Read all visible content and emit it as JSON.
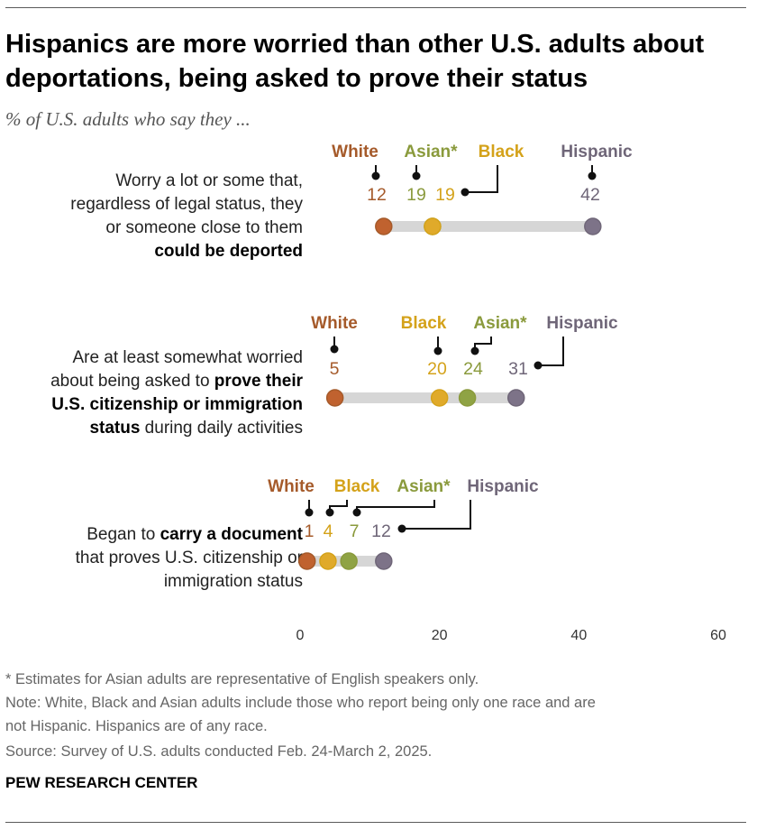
{
  "title": "Hispanics are more worried than other U.S. adults about deportations, being asked to prove their status",
  "subtitle": "% of U.S. adults who say they ...",
  "rows": [
    {
      "label_parts": [
        {
          "text": "Worry a lot or some that,",
          "bold": false
        },
        {
          "text": "regardless of legal status, they",
          "bold": false
        },
        {
          "text": "or someone close to them",
          "bold": false
        },
        {
          "text": "could be deported",
          "bold": true
        }
      ]
    },
    {
      "label_parts": [
        {
          "text": "Are at least somewhat worried",
          "bold": false
        },
        {
          "text": "about being asked to ",
          "bold": false
        },
        {
          "text": "prove their",
          "bold": true
        },
        {
          "text": "U.S. citizenship or immigration",
          "bold": true
        },
        {
          "text": "status",
          "bold": true
        },
        {
          "text": " during daily activities",
          "bold": false
        }
      ]
    },
    {
      "label_parts": [
        {
          "text": "Began to ",
          "bold": false
        },
        {
          "text": "carry a document",
          "bold": true
        },
        {
          "text": "that proves U.S. citizenship or",
          "bold": false
        },
        {
          "text": "immigration status",
          "bold": false
        }
      ]
    }
  ],
  "chart_data": {
    "type": "dot",
    "xlim": [
      0,
      60
    ],
    "xticks": [
      0,
      20,
      40,
      60
    ],
    "groups": [
      {
        "name": "White",
        "color": "#a55a2a",
        "dot_color": "#c0622f"
      },
      {
        "name": "Asian*",
        "color": "#8a9a3c",
        "dot_color": "#8fa344"
      },
      {
        "name": "Black",
        "color": "#d4a21a",
        "dot_color": "#e0aa2a"
      },
      {
        "name": "Hispanic",
        "color": "#6f6678",
        "dot_color": "#7d7388"
      }
    ],
    "series": [
      {
        "row": "Worry a lot or some that, regardless of legal status, they or someone close to them could be deported",
        "values": {
          "White": 12,
          "Asian*": 19,
          "Black": 19,
          "Hispanic": 42
        }
      },
      {
        "row": "Are at least somewhat worried about being asked to prove their U.S. citizenship or immigration status during daily activities",
        "values": {
          "White": 5,
          "Black": 20,
          "Asian*": 24,
          "Hispanic": 31
        }
      },
      {
        "row": "Began to carry a document that proves U.S. citizenship or immigration status",
        "values": {
          "White": 1,
          "Black": 4,
          "Asian*": 7,
          "Hispanic": 12
        }
      }
    ]
  },
  "notes": [
    "* Estimates for Asian adults are representative of English speakers only.",
    "Note: White, Black and Asian adults include those who report being only one race and are",
    "not Hispanic. Hispanics are of any race.",
    "Source: Survey of U.S. adults conducted Feb. 24-March 2, 2025."
  ],
  "org": "PEW RESEARCH CENTER"
}
